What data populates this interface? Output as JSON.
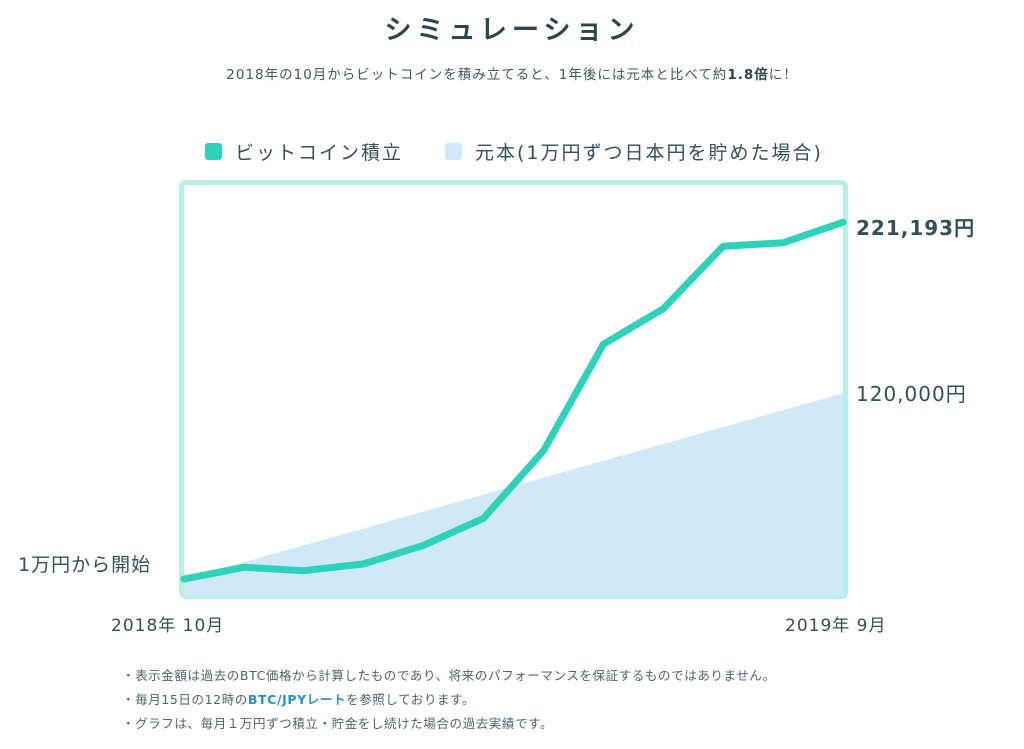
{
  "title": "シミュレーション",
  "subtitle": {
    "pre": "2018年の10月からビットコインを積み立てると、1年後には元本と比べて約",
    "emph": "1.8倍",
    "post": "に！"
  },
  "legend": [
    {
      "label": "ビットコイン積立",
      "color": "#2dd3b8"
    },
    {
      "label": "元本(1万円ずつ日本円を貯めた場合)",
      "color": "#cfe9f8"
    }
  ],
  "labels": {
    "start": "1万円から開始",
    "end_bitcoin": "221,193円",
    "end_principal": "120,000円",
    "x_start": "2018年 10月",
    "x_end": "2019年 9月"
  },
  "chart_data": {
    "type": "line",
    "x": [
      "2018-10",
      "2018-11",
      "2018-12",
      "2019-01",
      "2019-02",
      "2019-03",
      "2019-04",
      "2019-05",
      "2019-06",
      "2019-07",
      "2019-08",
      "2019-09"
    ],
    "series": [
      {
        "name": "ビットコイン積立",
        "values": [
          10000,
          17000,
          15000,
          19000,
          30000,
          46000,
          86000,
          149000,
          170000,
          207000,
          209000,
          221193
        ],
        "color": "#2dd3b8"
      },
      {
        "name": "元本(1万円ずつ日本円を貯めた場合)",
        "values": [
          10000,
          20000,
          30000,
          40000,
          50000,
          60000,
          70000,
          80000,
          90000,
          100000,
          110000,
          120000
        ],
        "color": "#cfe9f8",
        "style": "area"
      }
    ],
    "ylim": [
      0,
      245000
    ]
  },
  "footnotes": {
    "n1": "・表示金額は過去のBTC価格から計算したものであり、将来のパフォーマンスを保証するものではありません。",
    "n2_pre": "・毎月15日の12時の",
    "n2_link": "BTC/JPYレート",
    "n2_post": "を参照しております。",
    "n3": "・グラフは、毎月１万円ずつ積立・貯金をし続けた場合の過去実績です。"
  },
  "colors": {
    "frame": "#b6f0e6",
    "line": "#2dd3b8",
    "area": "#cfe9f8"
  }
}
